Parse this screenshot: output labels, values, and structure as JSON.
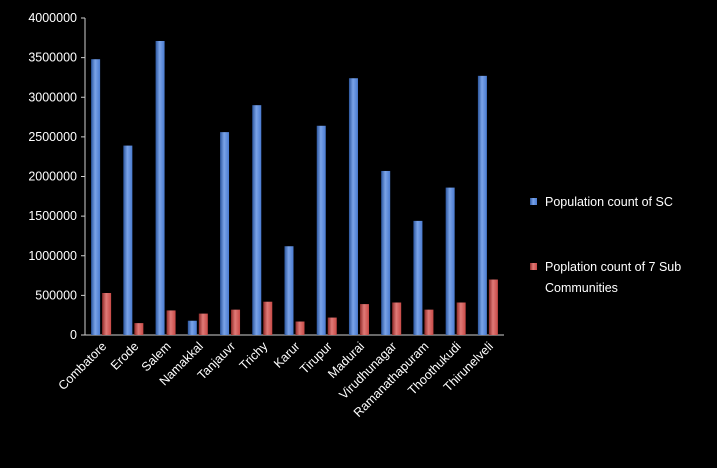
{
  "chart_data": {
    "type": "bar",
    "categories": [
      "Combatore",
      "Erode",
      "Salem",
      "Namakkal",
      "Tanjauvr",
      "Trichy",
      "Karur",
      "Tirupur",
      "Madurai",
      "Virudhunagar",
      "Ramanathapuram",
      "Thoothukudi",
      "Thirunelveli"
    ],
    "series": [
      {
        "name": "Population count of SC",
        "color": "#4a7bd0",
        "values": [
          3480000,
          2390000,
          3710000,
          180000,
          2560000,
          2900000,
          1120000,
          2640000,
          3240000,
          2070000,
          1440000,
          1860000,
          3270000
        ]
      },
      {
        "name": "Poplation count of 7 Sub Communities",
        "color": "#c84a47",
        "values": [
          530000,
          150000,
          310000,
          270000,
          320000,
          420000,
          170000,
          220000,
          390000,
          410000,
          320000,
          410000,
          700000
        ]
      }
    ],
    "yticks": [
      "0",
      "500000",
      "1000000",
      "1500000",
      "2000000",
      "2500000",
      "3000000",
      "3500000",
      "4000000"
    ],
    "ylim": [
      0,
      4000000
    ],
    "grid": false,
    "legend_position": "right"
  }
}
